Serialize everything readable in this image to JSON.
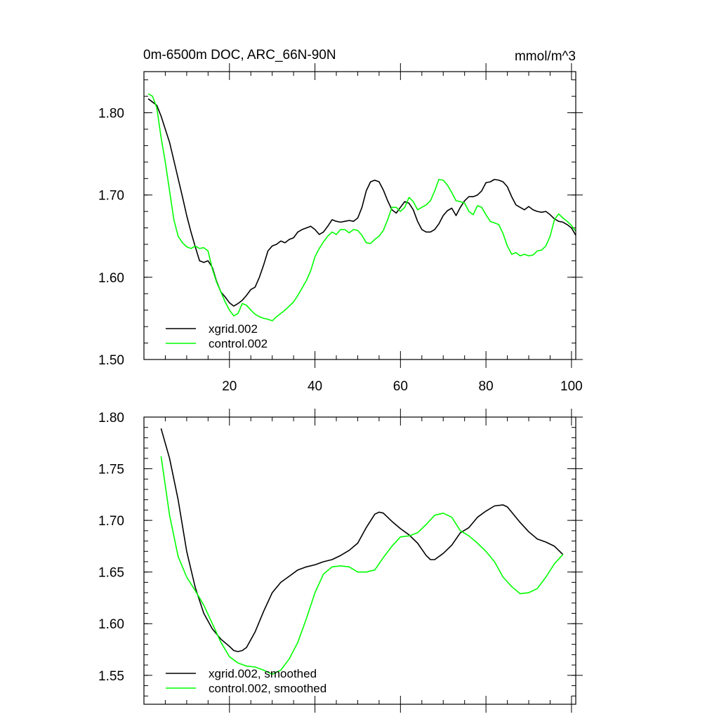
{
  "chart_data": [
    {
      "type": "line",
      "title": "0m-6500m DOC, ARC_66N-90N",
      "units": "mmol/m^3",
      "xlim": [
        0,
        101
      ],
      "ylim": [
        1.5,
        1.85
      ],
      "xticks": [
        20,
        40,
        60,
        80,
        100
      ],
      "xtick_labels": [
        "20",
        "40",
        "60",
        "80",
        "100"
      ],
      "yticks": [
        1.5,
        1.6,
        1.7,
        1.8
      ],
      "ytick_labels": [
        "1.50",
        "1.60",
        "1.70",
        "1.80"
      ],
      "legend": "bottom-left",
      "series": [
        {
          "name": "xgrid.002",
          "color": "#000000",
          "x": [
            1,
            2,
            3,
            4,
            5,
            6,
            7,
            8,
            9,
            10,
            11,
            12,
            13,
            14,
            15,
            16,
            17,
            18,
            19,
            20,
            21,
            22,
            23,
            24,
            25,
            26,
            27,
            28,
            29,
            30,
            31,
            32,
            33,
            34,
            35,
            36,
            37,
            38,
            39,
            40,
            41,
            42,
            43,
            44,
            45,
            46,
            47,
            48,
            49,
            50,
            51,
            52,
            53,
            54,
            55,
            56,
            57,
            58,
            59,
            60,
            61,
            62,
            63,
            64,
            65,
            66,
            67,
            68,
            69,
            70,
            71,
            72,
            73,
            74,
            75,
            76,
            77,
            78,
            79,
            80,
            81,
            82,
            83,
            84,
            85,
            86,
            87,
            88,
            89,
            90,
            91,
            92,
            93,
            94,
            95,
            96,
            97,
            98,
            99,
            100,
            101
          ],
          "y": [
            1.817,
            1.813,
            1.809,
            1.796,
            1.78,
            1.764,
            1.742,
            1.72,
            1.698,
            1.675,
            1.655,
            1.637,
            1.62,
            1.618,
            1.62,
            1.612,
            1.595,
            1.582,
            1.576,
            1.569,
            1.565,
            1.568,
            1.572,
            1.578,
            1.585,
            1.588,
            1.6,
            1.615,
            1.632,
            1.638,
            1.64,
            1.644,
            1.642,
            1.646,
            1.648,
            1.655,
            1.658,
            1.66,
            1.662,
            1.658,
            1.652,
            1.655,
            1.662,
            1.67,
            1.668,
            1.667,
            1.668,
            1.669,
            1.668,
            1.672,
            1.685,
            1.705,
            1.716,
            1.718,
            1.716,
            1.706,
            1.693,
            1.682,
            1.678,
            1.685,
            1.692,
            1.69,
            1.682,
            1.668,
            1.658,
            1.655,
            1.655,
            1.658,
            1.665,
            1.675,
            1.681,
            1.684,
            1.675,
            1.685,
            1.693,
            1.698,
            1.698,
            1.7,
            1.705,
            1.715,
            1.716,
            1.719,
            1.718,
            1.716,
            1.71,
            1.698,
            1.688,
            1.685,
            1.682,
            1.686,
            1.682,
            1.68,
            1.679,
            1.68,
            1.676,
            1.671,
            1.668,
            1.667,
            1.664,
            1.66,
            1.651
          ]
        },
        {
          "name": "control.002",
          "color": "#00ff00",
          "x": [
            1,
            2,
            3,
            4,
            5,
            6,
            7,
            8,
            9,
            10,
            11,
            12,
            13,
            14,
            15,
            16,
            17,
            18,
            19,
            20,
            21,
            22,
            23,
            24,
            25,
            26,
            27,
            28,
            29,
            30,
            31,
            32,
            33,
            34,
            35,
            36,
            37,
            38,
            39,
            40,
            41,
            42,
            43,
            44,
            45,
            46,
            47,
            48,
            49,
            50,
            51,
            52,
            53,
            54,
            55,
            56,
            57,
            58,
            59,
            60,
            61,
            62,
            63,
            64,
            65,
            66,
            67,
            68,
            69,
            70,
            71,
            72,
            73,
            74,
            75,
            76,
            77,
            78,
            79,
            80,
            81,
            82,
            83,
            84,
            85,
            86,
            87,
            88,
            89,
            90,
            91,
            92,
            93,
            94,
            95,
            96,
            97,
            98,
            99,
            100,
            101
          ],
          "y": [
            1.823,
            1.82,
            1.806,
            1.77,
            1.74,
            1.705,
            1.67,
            1.65,
            1.642,
            1.637,
            1.635,
            1.638,
            1.635,
            1.636,
            1.632,
            1.61,
            1.594,
            1.582,
            1.57,
            1.56,
            1.553,
            1.556,
            1.568,
            1.566,
            1.56,
            1.555,
            1.552,
            1.55,
            1.549,
            1.547,
            1.552,
            1.556,
            1.56,
            1.565,
            1.57,
            1.578,
            1.587,
            1.596,
            1.608,
            1.625,
            1.635,
            1.643,
            1.65,
            1.655,
            1.652,
            1.658,
            1.658,
            1.654,
            1.658,
            1.657,
            1.651,
            1.642,
            1.641,
            1.646,
            1.65,
            1.657,
            1.67,
            1.685,
            1.685,
            1.68,
            1.685,
            1.697,
            1.692,
            1.682,
            1.685,
            1.688,
            1.693,
            1.705,
            1.719,
            1.718,
            1.712,
            1.703,
            1.693,
            1.692,
            1.69,
            1.68,
            1.676,
            1.687,
            1.685,
            1.676,
            1.668,
            1.666,
            1.664,
            1.653,
            1.638,
            1.628,
            1.63,
            1.626,
            1.628,
            1.626,
            1.627,
            1.632,
            1.633,
            1.638,
            1.65,
            1.67,
            1.677,
            1.672,
            1.668,
            1.663,
            1.656
          ]
        }
      ]
    },
    {
      "type": "line",
      "title": "",
      "xlim": [
        0,
        101
      ],
      "ylim": [
        1.522,
        1.8
      ],
      "xticks": [
        20,
        40,
        60,
        80,
        100
      ],
      "xtick_labels": [],
      "yticks": [
        1.55,
        1.6,
        1.65,
        1.7,
        1.75,
        1.8
      ],
      "ytick_labels": [
        "1.55",
        "1.60",
        "1.65",
        "1.70",
        "1.75",
        "1.80"
      ],
      "legend": "bottom-left",
      "series": [
        {
          "name": "xgrid.002, smoothed",
          "color": "#000000",
          "x": [
            4,
            6,
            8,
            10,
            12,
            14,
            16,
            18,
            20,
            21,
            22,
            23,
            24,
            26,
            28,
            30,
            32,
            34,
            36,
            38,
            40,
            42,
            44,
            46,
            48,
            50,
            52,
            54,
            55,
            56,
            58,
            60,
            62,
            64,
            66,
            67,
            68,
            70,
            72,
            74,
            76,
            78,
            80,
            82,
            84,
            85,
            86,
            88,
            90,
            92,
            94,
            96,
            98
          ],
          "y": [
            1.789,
            1.76,
            1.72,
            1.67,
            1.635,
            1.61,
            1.595,
            1.585,
            1.578,
            1.574,
            1.573,
            1.574,
            1.577,
            1.592,
            1.612,
            1.63,
            1.64,
            1.646,
            1.652,
            1.655,
            1.657,
            1.66,
            1.662,
            1.666,
            1.671,
            1.678,
            1.693,
            1.706,
            1.708,
            1.707,
            1.699,
            1.692,
            1.686,
            1.678,
            1.666,
            1.662,
            1.662,
            1.668,
            1.676,
            1.688,
            1.693,
            1.703,
            1.709,
            1.714,
            1.715,
            1.713,
            1.708,
            1.698,
            1.689,
            1.682,
            1.679,
            1.675,
            1.667
          ]
        },
        {
          "name": "control.002, smoothed",
          "color": "#00ff00",
          "x": [
            4,
            6,
            8,
            10,
            12,
            14,
            16,
            18,
            20,
            22,
            24,
            26,
            28,
            30,
            32,
            34,
            36,
            38,
            40,
            42,
            44,
            46,
            48,
            50,
            52,
            54,
            56,
            58,
            60,
            62,
            64,
            66,
            68,
            70,
            72,
            74,
            76,
            78,
            80,
            82,
            84,
            86,
            88,
            90,
            92,
            94,
            96,
            98
          ],
          "y": [
            1.762,
            1.705,
            1.665,
            1.645,
            1.632,
            1.618,
            1.6,
            1.582,
            1.568,
            1.562,
            1.559,
            1.558,
            1.555,
            1.551,
            1.555,
            1.566,
            1.582,
            1.605,
            1.63,
            1.648,
            1.655,
            1.656,
            1.655,
            1.65,
            1.65,
            1.652,
            1.664,
            1.675,
            1.684,
            1.685,
            1.688,
            1.696,
            1.705,
            1.707,
            1.703,
            1.69,
            1.685,
            1.678,
            1.67,
            1.66,
            1.645,
            1.636,
            1.629,
            1.63,
            1.634,
            1.645,
            1.658,
            1.667
          ]
        }
      ]
    }
  ]
}
